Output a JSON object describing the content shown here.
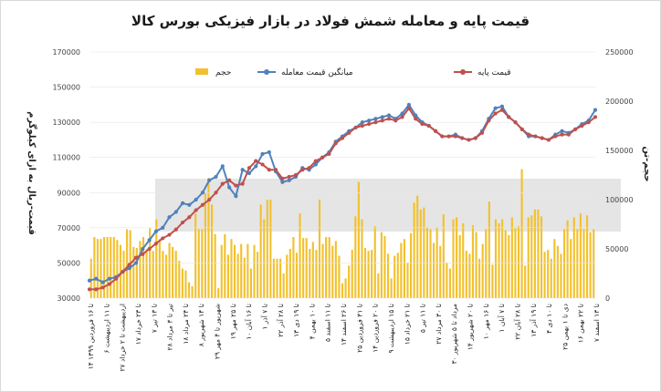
{
  "title": "قیمت پایه و معامله شمش فولاد در بازار فیزیکی بورس کالا",
  "chart_data": {
    "type": "bar+line",
    "left_axis": {
      "label": "قیمت-ریال به ازای کیلوگرم",
      "ticks": [
        "170000",
        "150000",
        "130000",
        "110000",
        "90000",
        "70000",
        "50000",
        "30000"
      ],
      "range": [
        30000,
        170000
      ]
    },
    "right_axis": {
      "label": "حجم-تن",
      "ticks": [
        "250000",
        "200000",
        "150000",
        "100000",
        "50000",
        "0"
      ],
      "range": [
        0,
        250000
      ]
    },
    "legend": {
      "volume": "حجم",
      "trade_avg": "میانگین قیمت معامله",
      "base": "قیمت پایه"
    },
    "colors": {
      "volume": "#f2c12e",
      "trade_avg": "#4f81bd",
      "base": "#c0504d"
    },
    "categories": [
      "۱۴ تا ۱۶ فروردین ۱۳۹۹",
      "۶ تا ۱۱ اردیبهشت",
      "۲۷ اردیبهشت تا ۲ خرداد",
      "۱۷ تا ۲۳ خرداد",
      "۷ تا ۱۳ تیر",
      "۲۸ تیر تا ۳ مرداد",
      "۱۸ تا ۲۴ مرداد",
      "۸ تا ۱۴ شهریور",
      "۲۹ شهریور تا ۴ مهر",
      "۱۹ تا ۲۵ مهر",
      "۱۰ تا ۱۶ آبان",
      "۱ تا ۷ آذر",
      "۲۲ تا ۲۸ آذر",
      "۱۳ تا ۱۹ دی",
      "۴ تا ۱۰ بهمن",
      "۵ تا ۱۱ اسفند",
      "۱۴ تا ۲۶ اسفند",
      "۲۵ تا ۳۱ فروردین",
      "۱۴ تا ۲۰ فروردین",
      "۹ تا ۱۵ اردیبهشت",
      "۱۵ تا ۲۱ خرداد",
      "۵ تا ۱۱ تیر",
      "۲۷ تا ۳۰ مرداد",
      "۳۰ مرداد تا ۵ شهریور",
      "۱۴ تا ۲۰ شهریور",
      "۱۰ تا ۱۶ مهر",
      "۱ تا ۷ آبان",
      "۲۲ تا ۲۸ آبان",
      "۱۳ تا ۱۹ آذر",
      "۴ تا ۱۰ دی",
      "۲۵ دی تا ۱ بهمن",
      "۱۶ تا ۲۲ بهمن",
      "۷ تا ۱۳ اسفند"
    ],
    "volume": [
      40000,
      62000,
      60000,
      60000,
      62000,
      62000,
      62000,
      62000,
      59000,
      54000,
      48000,
      70000,
      69000,
      52000,
      51000,
      58000,
      62000,
      50000,
      71000,
      48000,
      80000,
      60000,
      48000,
      44000,
      56000,
      52000,
      48000,
      38000,
      30000,
      28000,
      16000,
      12000,
      86000,
      70000,
      70000,
      107000,
      122000,
      95000,
      65000,
      10000,
      54000,
      65000,
      44000,
      60000,
      54000,
      45000,
      55000,
      41000,
      55000,
      30000,
      54000,
      47000,
      95000,
      80000,
      100000,
      100000,
      40000,
      40000,
      40000,
      25000,
      44000,
      50000,
      62000,
      46000,
      86000,
      61000,
      61000,
      50000,
      57000,
      49000,
      100000,
      55000,
      62000,
      62000,
      53000,
      58000,
      43000,
      15000,
      20000,
      33000,
      49000,
      83000,
      118000,
      80000,
      51000,
      48000,
      49000,
      73000,
      25000,
      67000,
      63000,
      45000,
      20000,
      43000,
      46000,
      56000,
      60000,
      36000,
      66000,
      97000,
      104000,
      90000,
      92000,
      72000,
      70000,
      56000,
      72000,
      53000,
      85000,
      36000,
      30000,
      80000,
      82000,
      64000,
      76000,
      48000,
      45000,
      74000,
      67000,
      40000,
      55000,
      70000,
      98000,
      34000,
      80000,
      76000,
      80000,
      69000,
      64000,
      82000,
      71000,
      73000,
      131000,
      33000,
      82000,
      84000,
      90000,
      90000,
      83000,
      47000,
      49000,
      40000,
      60000,
      53000,
      45000,
      70000,
      79000,
      60000,
      82000,
      70000,
      86000,
      70000,
      84000,
      67000,
      70000
    ],
    "trade_avg": [
      40000,
      41000,
      39000,
      41000,
      42000,
      45000,
      47000,
      50000,
      58000,
      63000,
      68000,
      70000,
      76000,
      79000,
      84000,
      83000,
      86000,
      90000,
      97000,
      99000,
      105000,
      93000,
      88000,
      103000,
      101000,
      105000,
      112000,
      113000,
      102000,
      96000,
      97000,
      99000,
      104000,
      103000,
      106000,
      110000,
      113000,
      119000,
      122000,
      125000,
      127000,
      130000,
      131000,
      132000,
      133000,
      134000,
      132000,
      135000,
      140000,
      134000,
      130000,
      128000,
      125000,
      122000,
      122000,
      123000,
      121000,
      120000,
      121000,
      125000,
      132000,
      138000,
      139000,
      133000,
      130000,
      126000,
      122000,
      122000,
      121000,
      120000,
      123000,
      125000,
      124000,
      126000,
      129000,
      131000,
      137000
    ],
    "base": [
      35000,
      35000,
      36000,
      38000,
      41000,
      45000,
      49000,
      53000,
      55000,
      58000,
      61000,
      64000,
      66000,
      69000,
      73000,
      76000,
      80000,
      83000,
      86000,
      90000,
      95000,
      97000,
      94000,
      95000,
      104000,
      108000,
      106000,
      103000,
      103000,
      98000,
      99000,
      100000,
      103000,
      104000,
      108000,
      110000,
      112000,
      118000,
      121000,
      124000,
      127000,
      128000,
      129000,
      130000,
      131000,
      132000,
      131000,
      133000,
      138000,
      132000,
      129000,
      128000,
      125000,
      122000,
      122000,
      122000,
      121000,
      120000,
      121000,
      124000,
      131000,
      135000,
      137000,
      133000,
      130000,
      126000,
      123000,
      122000,
      121000,
      120000,
      122000,
      123000,
      123000,
      126000,
      128000,
      130000,
      133000
    ]
  }
}
